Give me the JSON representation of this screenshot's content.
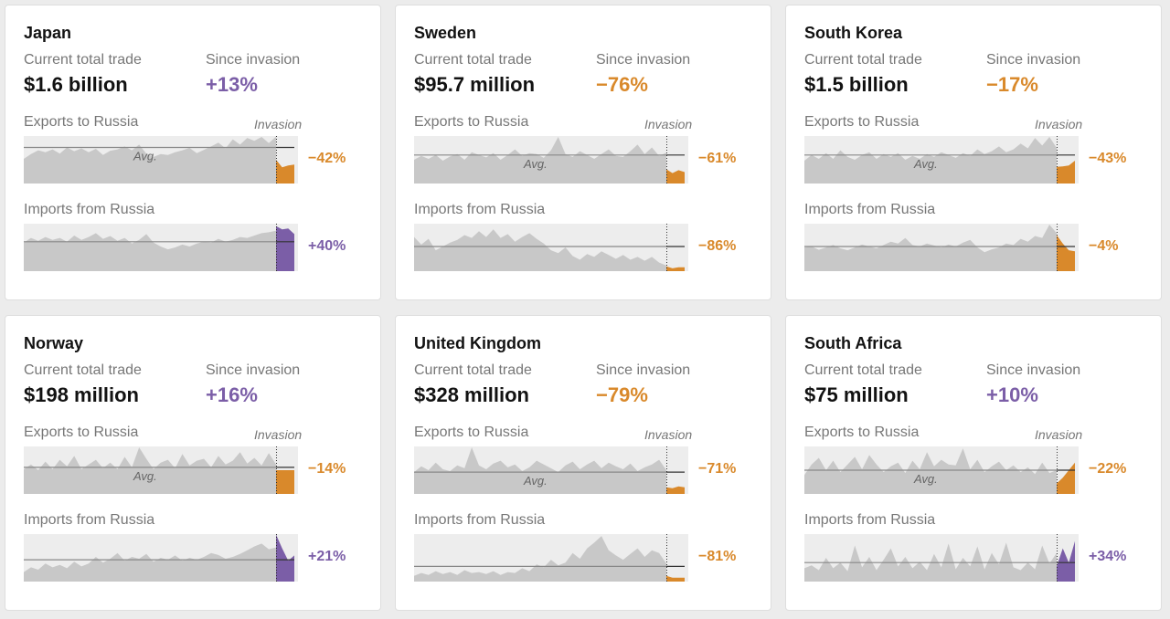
{
  "colors": {
    "positive": "#7b5ea7",
    "negative": "#d9892b",
    "area": "#c8c8c8",
    "bg": "#ededed",
    "avg_line": "#888888"
  },
  "labels": {
    "current_total_trade": "Current total trade",
    "since_invasion": "Since invasion",
    "exports": "Exports to Russia",
    "imports": "Imports from Russia",
    "invasion": "Invasion",
    "avg": "Avg."
  },
  "cards": [
    {
      "country": "Japan",
      "total": "$1.6 billion",
      "since": "+13%",
      "since_sign": "positive",
      "exports_change": "−42%",
      "exports_sign": "negative",
      "imports_change": "+40%",
      "imports_sign": "positive"
    },
    {
      "country": "Sweden",
      "total": "$95.7 million",
      "since": "−76%",
      "since_sign": "negative",
      "exports_change": "−61%",
      "exports_sign": "negative",
      "imports_change": "−86%",
      "imports_sign": "negative"
    },
    {
      "country": "South Korea",
      "total": "$1.5 billion",
      "since": "−17%",
      "since_sign": "negative",
      "exports_change": "−43%",
      "exports_sign": "negative",
      "imports_change": "−4%",
      "imports_sign": "negative"
    },
    {
      "country": "Norway",
      "total": "$198 million",
      "since": "+16%",
      "since_sign": "positive",
      "exports_change": "−14%",
      "exports_sign": "negative",
      "imports_change": "+21%",
      "imports_sign": "positive"
    },
    {
      "country": "United Kingdom",
      "total": "$328 million",
      "since": "−79%",
      "since_sign": "negative",
      "exports_change": "−71%",
      "exports_sign": "negative",
      "imports_change": "−81%",
      "imports_sign": "negative"
    },
    {
      "country": "South Africa",
      "total": "$75 million",
      "since": "+10%",
      "since_sign": "positive",
      "exports_change": "−22%",
      "exports_sign": "negative",
      "imports_change": "+34%",
      "imports_sign": "positive"
    }
  ],
  "chart_data": [
    {
      "type": "area",
      "title": "Japan — Exports to Russia",
      "change": "−42%",
      "avg_label_shown": true,
      "pre": [
        0.52,
        0.62,
        0.7,
        0.66,
        0.72,
        0.63,
        0.76,
        0.68,
        0.74,
        0.66,
        0.73,
        0.6,
        0.69,
        0.72,
        0.78,
        0.7,
        0.82,
        0.63,
        0.56,
        0.62,
        0.6,
        0.66,
        0.7,
        0.75,
        0.64,
        0.71,
        0.78,
        0.86,
        0.74,
        0.93,
        0.82,
        0.96,
        0.9,
        0.98,
        0.85,
        0.99
      ],
      "post": [
        0.5,
        0.34,
        0.38,
        0.4
      ],
      "avg": 0.76
    },
    {
      "type": "area",
      "title": "Japan — Imports from Russia",
      "change": "+40%",
      "avg_label_shown": false,
      "pre": [
        0.6,
        0.7,
        0.64,
        0.72,
        0.66,
        0.7,
        0.62,
        0.75,
        0.66,
        0.72,
        0.8,
        0.68,
        0.74,
        0.64,
        0.7,
        0.58,
        0.66,
        0.78,
        0.6,
        0.52,
        0.46,
        0.5,
        0.56,
        0.52,
        0.58,
        0.62,
        0.6,
        0.68,
        0.62,
        0.66,
        0.72,
        0.7,
        0.75,
        0.8,
        0.82,
        0.85
      ],
      "post": [
        0.95,
        0.88,
        0.9,
        0.78
      ],
      "avg": 0.62
    },
    {
      "type": "area",
      "title": "Sweden — Exports to Russia",
      "change": "−61%",
      "avg_label_shown": true,
      "pre": [
        0.5,
        0.58,
        0.52,
        0.6,
        0.48,
        0.57,
        0.62,
        0.5,
        0.66,
        0.6,
        0.55,
        0.64,
        0.5,
        0.6,
        0.72,
        0.58,
        0.64,
        0.62,
        0.54,
        0.7,
        0.98,
        0.62,
        0.56,
        0.68,
        0.6,
        0.52,
        0.62,
        0.72,
        0.58,
        0.56,
        0.68,
        0.82,
        0.62,
        0.76,
        0.58,
        0.65
      ],
      "post": [
        0.3,
        0.22,
        0.28,
        0.24
      ],
      "avg": 0.6
    },
    {
      "type": "area",
      "title": "Sweden — Imports from Russia",
      "change": "−86%",
      "avg_label_shown": false,
      "pre": [
        0.72,
        0.56,
        0.68,
        0.44,
        0.52,
        0.6,
        0.66,
        0.76,
        0.7,
        0.84,
        0.72,
        0.88,
        0.7,
        0.78,
        0.62,
        0.72,
        0.8,
        0.68,
        0.58,
        0.44,
        0.38,
        0.5,
        0.32,
        0.24,
        0.36,
        0.3,
        0.42,
        0.34,
        0.26,
        0.34,
        0.24,
        0.3,
        0.22,
        0.3,
        0.18,
        0.12
      ],
      "post": [
        0.1,
        0.06,
        0.08,
        0.08
      ],
      "avg": 0.52
    },
    {
      "type": "area",
      "title": "South Korea — Exports to Russia",
      "change": "−43%",
      "avg_label_shown": true,
      "pre": [
        0.48,
        0.6,
        0.52,
        0.64,
        0.52,
        0.7,
        0.56,
        0.5,
        0.6,
        0.66,
        0.52,
        0.62,
        0.56,
        0.64,
        0.5,
        0.58,
        0.52,
        0.62,
        0.56,
        0.66,
        0.6,
        0.54,
        0.64,
        0.58,
        0.72,
        0.62,
        0.68,
        0.78,
        0.66,
        0.72,
        0.84,
        0.74,
        0.96,
        0.8,
        0.98,
        0.75
      ],
      "post": [
        0.35,
        0.36,
        0.38,
        0.48
      ],
      "avg": 0.6
    },
    {
      "type": "area",
      "title": "South Korea — Imports from Russia",
      "change": "−4%",
      "avg_label_shown": false,
      "pre": [
        0.5,
        0.52,
        0.45,
        0.5,
        0.55,
        0.48,
        0.44,
        0.5,
        0.56,
        0.52,
        0.48,
        0.55,
        0.62,
        0.58,
        0.7,
        0.55,
        0.52,
        0.58,
        0.54,
        0.5,
        0.56,
        0.52,
        0.6,
        0.66,
        0.5,
        0.4,
        0.46,
        0.5,
        0.58,
        0.55,
        0.68,
        0.62,
        0.74,
        0.7,
        0.98,
        0.8
      ],
      "post": [
        0.76,
        0.58,
        0.44,
        0.42
      ],
      "avg": 0.52
    },
    {
      "type": "area",
      "title": "Norway — Exports to Russia",
      "change": "−14%",
      "avg_label_shown": true,
      "pre": [
        0.52,
        0.62,
        0.5,
        0.68,
        0.52,
        0.72,
        0.58,
        0.8,
        0.52,
        0.62,
        0.72,
        0.54,
        0.66,
        0.52,
        0.78,
        0.56,
        0.98,
        0.74,
        0.52,
        0.66,
        0.72,
        0.54,
        0.84,
        0.6,
        0.7,
        0.74,
        0.56,
        0.8,
        0.62,
        0.7,
        0.88,
        0.64,
        0.76,
        0.6,
        0.86,
        0.62
      ],
      "post": [
        0.5,
        0.5,
        0.5,
        0.5
      ],
      "avg": 0.56
    },
    {
      "type": "area",
      "title": "Norway — Imports from Russia",
      "change": "+21%",
      "avg_label_shown": false,
      "pre": [
        0.2,
        0.3,
        0.25,
        0.38,
        0.3,
        0.35,
        0.28,
        0.42,
        0.32,
        0.38,
        0.52,
        0.4,
        0.48,
        0.6,
        0.44,
        0.52,
        0.48,
        0.58,
        0.42,
        0.5,
        0.46,
        0.55,
        0.44,
        0.5,
        0.46,
        0.52,
        0.6,
        0.56,
        0.48,
        0.52,
        0.58,
        0.66,
        0.74,
        0.8,
        0.68,
        0.72
      ],
      "post": [
        0.99,
        0.7,
        0.44,
        0.55
      ],
      "avg": 0.46
    },
    {
      "type": "area",
      "title": "United Kingdom — Exports to Russia",
      "change": "−71%",
      "avg_label_shown": true,
      "pre": [
        0.46,
        0.58,
        0.5,
        0.66,
        0.52,
        0.48,
        0.6,
        0.54,
        0.98,
        0.6,
        0.52,
        0.64,
        0.7,
        0.56,
        0.62,
        0.48,
        0.56,
        0.7,
        0.62,
        0.54,
        0.46,
        0.6,
        0.68,
        0.52,
        0.62,
        0.7,
        0.54,
        0.66,
        0.58,
        0.52,
        0.64,
        0.48,
        0.56,
        0.62,
        0.72,
        0.5
      ],
      "post": [
        0.14,
        0.12,
        0.16,
        0.14
      ],
      "avg": 0.46
    },
    {
      "type": "area",
      "title": "United Kingdom — Imports from Russia",
      "change": "−81%",
      "avg_label_shown": false,
      "pre": [
        0.12,
        0.18,
        0.14,
        0.22,
        0.16,
        0.2,
        0.14,
        0.24,
        0.18,
        0.2,
        0.16,
        0.22,
        0.14,
        0.2,
        0.18,
        0.28,
        0.22,
        0.36,
        0.3,
        0.46,
        0.34,
        0.4,
        0.6,
        0.48,
        0.7,
        0.82,
        0.96,
        0.66,
        0.55,
        0.46,
        0.58,
        0.7,
        0.52,
        0.66,
        0.6,
        0.38
      ],
      "post": [
        0.12,
        0.08,
        0.08,
        0.08
      ],
      "avg": 0.32
    },
    {
      "type": "area",
      "title": "South Africa — Exports to Russia",
      "change": "−22%",
      "avg_label_shown": true,
      "pre": [
        0.4,
        0.62,
        0.76,
        0.5,
        0.7,
        0.46,
        0.62,
        0.78,
        0.52,
        0.82,
        0.62,
        0.46,
        0.58,
        0.66,
        0.44,
        0.7,
        0.52,
        0.88,
        0.58,
        0.72,
        0.62,
        0.6,
        0.96,
        0.52,
        0.72,
        0.46,
        0.58,
        0.68,
        0.5,
        0.6,
        0.46,
        0.56,
        0.42,
        0.66,
        0.44,
        0.5
      ],
      "post": [
        0.22,
        0.34,
        0.5,
        0.66
      ],
      "avg": 0.5
    },
    {
      "type": "area",
      "title": "South Africa — Imports from Russia",
      "change": "+34%",
      "avg_label_shown": false,
      "pre": [
        0.28,
        0.34,
        0.24,
        0.5,
        0.28,
        0.4,
        0.22,
        0.76,
        0.3,
        0.52,
        0.24,
        0.46,
        0.7,
        0.32,
        0.52,
        0.28,
        0.42,
        0.24,
        0.58,
        0.3,
        0.8,
        0.26,
        0.5,
        0.32,
        0.74,
        0.26,
        0.6,
        0.36,
        0.82,
        0.3,
        0.24,
        0.4,
        0.26,
        0.76,
        0.38,
        0.6
      ],
      "post": [
        0.32,
        0.7,
        0.4,
        0.85
      ],
      "avg": 0.4
    }
  ]
}
